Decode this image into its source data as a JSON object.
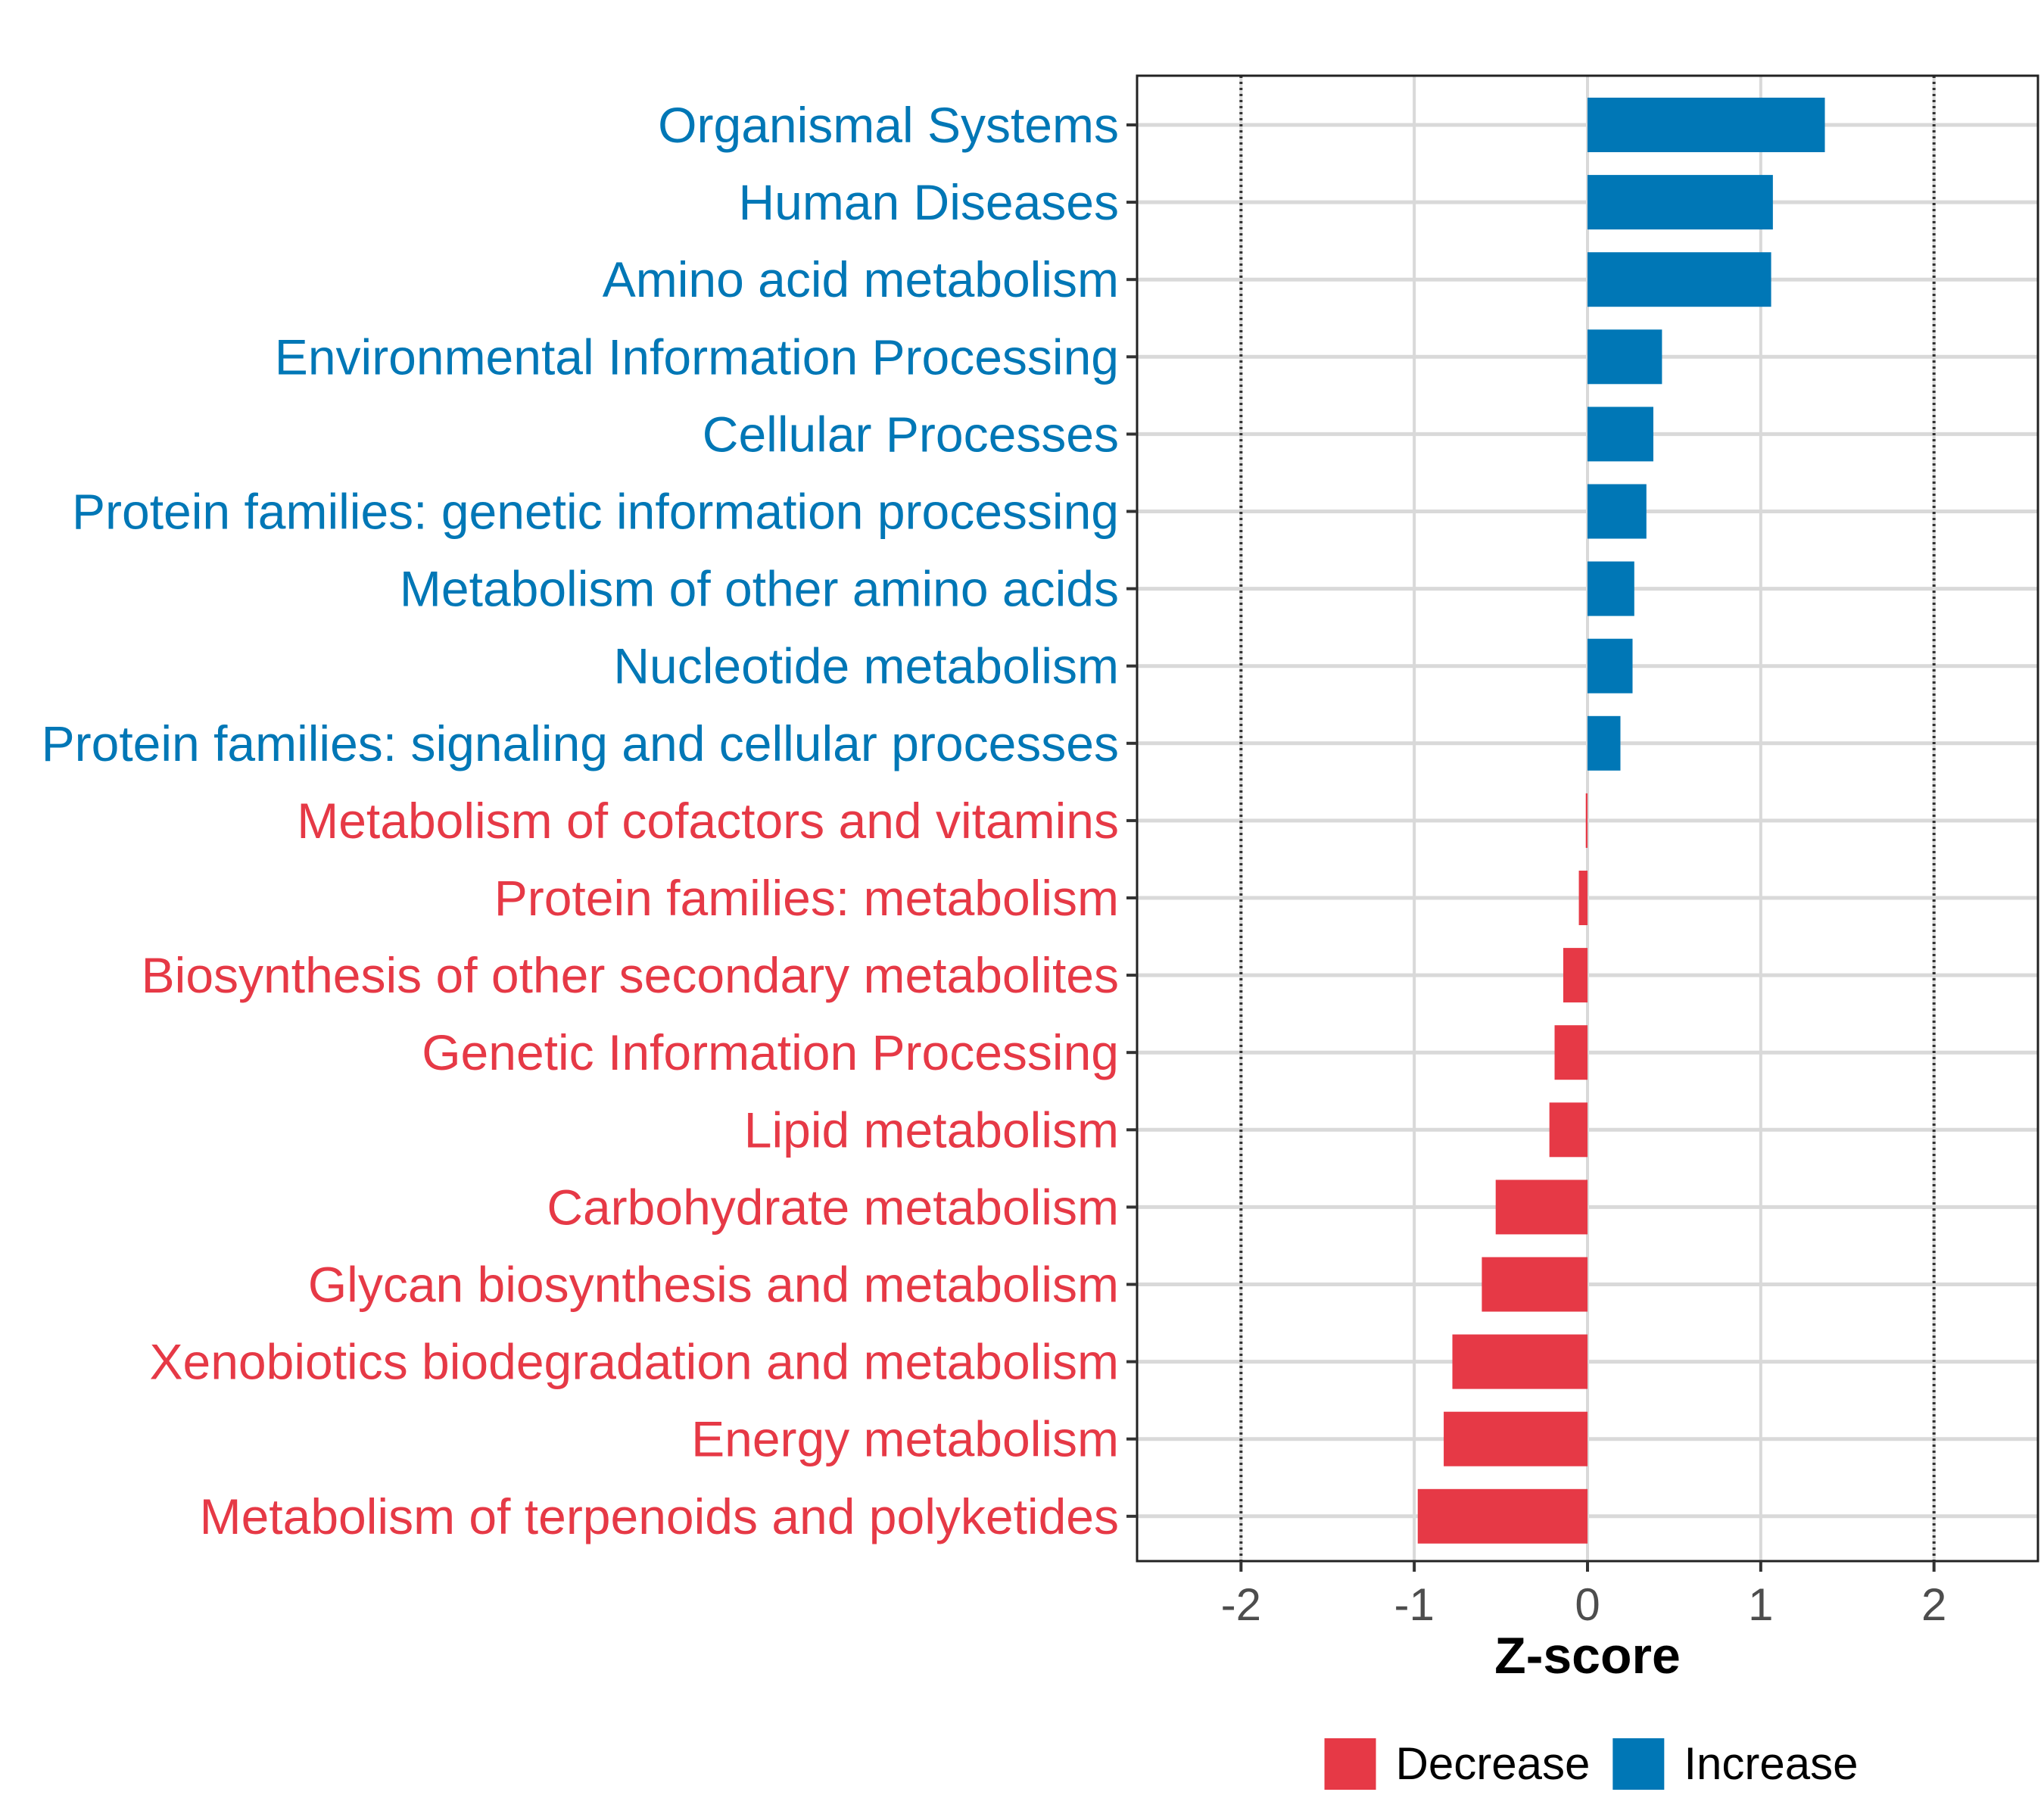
{
  "chart_data": {
    "type": "bar",
    "orientation": "horizontal",
    "xlabel": "Z-score",
    "ylabel": "",
    "xlim": [
      -2.6,
      2.6
    ],
    "x_ticks": [
      -2,
      -1,
      0,
      1,
      2
    ],
    "x_tick_labels": [
      "-2",
      "-1",
      "0",
      "1",
      "2"
    ],
    "reference_lines": [
      -2,
      2
    ],
    "grid": true,
    "colors": {
      "Decrease": "#e63946",
      "Increase": "#0077b6"
    },
    "legend": {
      "position": "bottom",
      "entries": [
        {
          "name": "Decrease",
          "color": "#e63946"
        },
        {
          "name": "Increase",
          "color": "#0077b6"
        }
      ]
    },
    "categories": [
      "Organismal Systems",
      "Human Diseases",
      "Amino acid metabolism",
      "Environmental Information Processing",
      "Cellular Processes",
      "Protein families: genetic information processing",
      "Metabolism of other amino acids",
      "Nucleotide metabolism",
      "Protein families: signaling and cellular processes",
      "Metabolism of cofactors and vitamins",
      "Protein families: metabolism",
      "Biosynthesis of other secondary metabolites",
      "Genetic Information Processing",
      "Lipid metabolism",
      "Carbohydrate metabolism",
      "Glycan biosynthesis and metabolism",
      "Xenobiotics biodegradation and metabolism",
      "Energy metabolism",
      "Metabolism of terpenoids and polyketides"
    ],
    "values": [
      1.37,
      1.07,
      1.06,
      0.43,
      0.38,
      0.34,
      0.27,
      0.26,
      0.19,
      -0.01,
      -0.05,
      -0.14,
      -0.19,
      -0.22,
      -0.53,
      -0.61,
      -0.78,
      -0.83,
      -0.98
    ],
    "groups": [
      "Increase",
      "Increase",
      "Increase",
      "Increase",
      "Increase",
      "Increase",
      "Increase",
      "Increase",
      "Increase",
      "Decrease",
      "Decrease",
      "Decrease",
      "Decrease",
      "Decrease",
      "Decrease",
      "Decrease",
      "Decrease",
      "Decrease",
      "Decrease"
    ]
  }
}
